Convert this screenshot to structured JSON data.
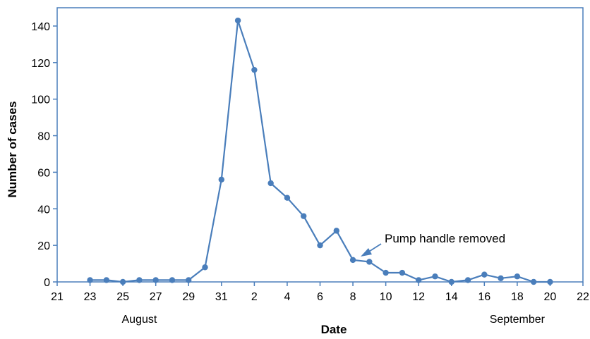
{
  "chart_data": {
    "type": "line",
    "title": "",
    "xlabel": "Date",
    "ylabel": "Number of cases",
    "ylim": [
      0,
      150
    ],
    "yticks": [
      0,
      20,
      40,
      60,
      80,
      100,
      120,
      140
    ],
    "x_day_ticks": [
      "21",
      "23",
      "25",
      "27",
      "29",
      "31",
      "2",
      "4",
      "6",
      "8",
      "10",
      "12",
      "14",
      "16",
      "18",
      "20",
      "22"
    ],
    "months": [
      {
        "label": "August",
        "anchor": "Aug 26"
      },
      {
        "label": "September",
        "anchor": "Sep 18"
      }
    ],
    "grid": false,
    "color": "#4a7ebb",
    "series": [
      {
        "x": [
          "Aug 23",
          "Aug 24",
          "Aug 25",
          "Aug 26",
          "Aug 27",
          "Aug 28",
          "Aug 29",
          "Aug 30",
          "Aug 31",
          "Sep 1",
          "Sep 2",
          "Sep 3",
          "Sep 4",
          "Sep 5",
          "Sep 6",
          "Sep 7",
          "Sep 8",
          "Sep 9",
          "Sep 10",
          "Sep 11",
          "Sep 12",
          "Sep 13",
          "Sep 14",
          "Sep 15",
          "Sep 16",
          "Sep 17",
          "Sep 18",
          "Sep 19",
          "Sep 20"
        ],
        "values": [
          1,
          1,
          0,
          1,
          1,
          1,
          1,
          8,
          56,
          143,
          116,
          54,
          46,
          36,
          20,
          28,
          12,
          11,
          5,
          5,
          1,
          3,
          0,
          1,
          4,
          2,
          3,
          0,
          0
        ]
      }
    ],
    "annotation": {
      "text": "Pump handle removed",
      "points_to": "Sep 8"
    }
  }
}
